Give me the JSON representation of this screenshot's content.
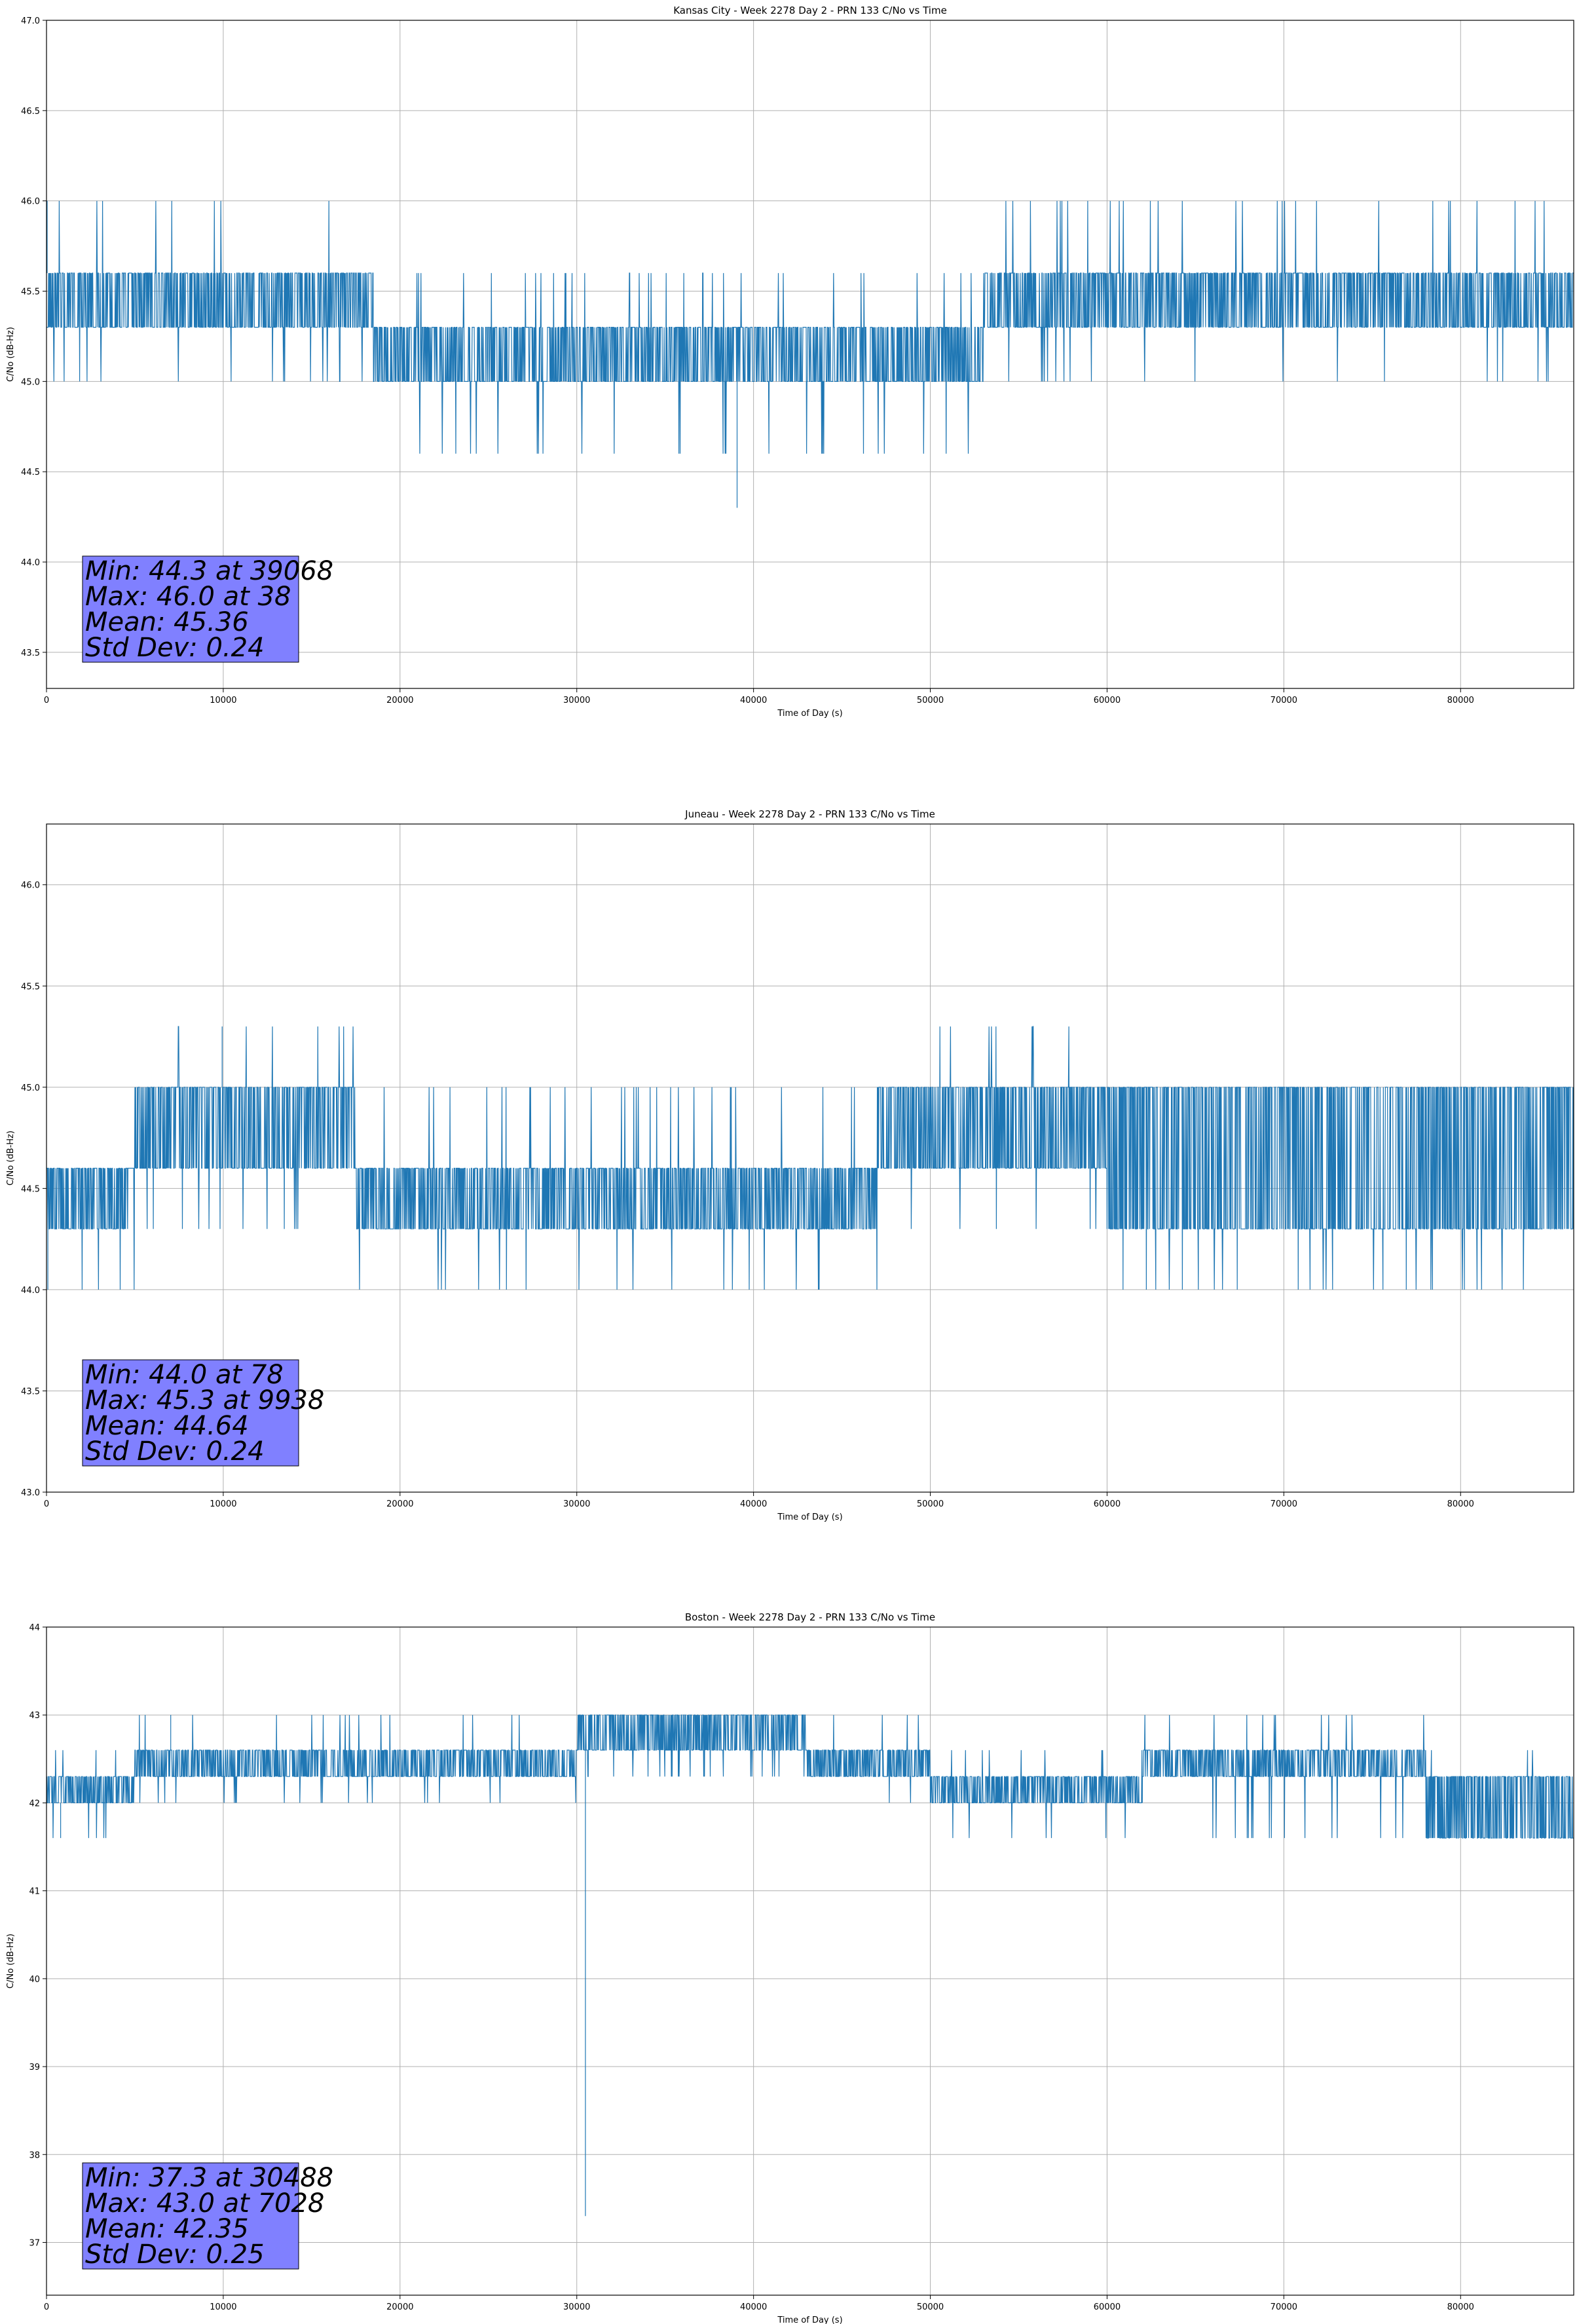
{
  "chart_data": [
    {
      "type": "line",
      "title": "Kansas City - Week 2278 Day 2 - PRN 133 C/No vs Time",
      "xlabel": "Time of Day (s)",
      "ylabel": "C/No (dB-Hz)",
      "xlim": [
        0,
        86400
      ],
      "ylim": [
        43.3,
        47.0
      ],
      "xticks": [
        0,
        10000,
        20000,
        30000,
        40000,
        50000,
        60000,
        70000,
        80000
      ],
      "xtick_labels": [
        "0",
        "10000",
        "20000",
        "30000",
        "40000",
        "50000",
        "60000",
        "70000",
        "80000"
      ],
      "yticks": [
        43.5,
        44.0,
        44.5,
        45.0,
        45.5,
        46.0,
        46.5,
        47.0
      ],
      "ytick_labels": [
        "43.5",
        "44.0",
        "44.5",
        "45.0",
        "45.5",
        "46.0",
        "46.5",
        "47.0"
      ],
      "grid": true,
      "color": "#1f77b4",
      "segments": [
        {
          "x": [
            0,
            18500
          ],
          "band": [
            45.3,
            45.6
          ],
          "spikes": [
            46.0,
            45.0
          ],
          "density": 0.6
        },
        {
          "x": [
            18500,
            53000
          ],
          "band": [
            45.0,
            45.3
          ],
          "spikes": [
            45.6,
            44.6
          ],
          "density": 0.4
        },
        {
          "x": [
            53000,
            86400
          ],
          "band": [
            45.3,
            45.6
          ],
          "spikes": [
            46.0,
            45.0
          ],
          "density": 0.35
        }
      ],
      "events": [
        {
          "x": 38,
          "y": 46.0
        },
        {
          "x": 39068,
          "y": 44.3
        }
      ],
      "stats": {
        "min": "Min: 44.3 at 39068",
        "max": "Max: 46.0 at 38",
        "mean": "Mean: 45.36",
        "std": "Std Dev: 0.24"
      }
    },
    {
      "type": "line",
      "title": "Juneau - Week 2278 Day 2 - PRN 133 C/No vs Time",
      "xlabel": "Time of Day (s)",
      "ylabel": "C/No (dB-Hz)",
      "xlim": [
        0,
        86400
      ],
      "ylim": [
        43.0,
        46.3
      ],
      "xticks": [
        0,
        10000,
        20000,
        30000,
        40000,
        50000,
        60000,
        70000,
        80000
      ],
      "xtick_labels": [
        "0",
        "10000",
        "20000",
        "30000",
        "40000",
        "50000",
        "60000",
        "70000",
        "80000"
      ],
      "yticks": [
        43.0,
        43.5,
        44.0,
        44.5,
        45.0,
        45.5,
        46.0
      ],
      "ytick_labels": [
        "43.0",
        "43.5",
        "44.0",
        "44.5",
        "45.0",
        "45.5",
        "46.0"
      ],
      "grid": true,
      "color": "#1f77b4",
      "segments": [
        {
          "x": [
            0,
            5000
          ],
          "band": [
            44.3,
            44.6
          ],
          "spikes": [
            44.0,
            44.6
          ],
          "density": 0.5
        },
        {
          "x": [
            5000,
            17500
          ],
          "band": [
            44.6,
            45.0
          ],
          "spikes": [
            45.3,
            44.3
          ],
          "density": 0.45
        },
        {
          "x": [
            17500,
            47000
          ],
          "band": [
            44.3,
            44.6
          ],
          "spikes": [
            45.0,
            44.0
          ],
          "density": 0.35
        },
        {
          "x": [
            47000,
            60000
          ],
          "band": [
            44.6,
            45.0
          ],
          "spikes": [
            45.3,
            44.3
          ],
          "density": 0.45
        },
        {
          "x": [
            60000,
            86400
          ],
          "band": [
            44.3,
            45.0
          ],
          "spikes": [
            44.0,
            45.0
          ],
          "density": 0.5
        }
      ],
      "events": [
        {
          "x": 78,
          "y": 44.0
        },
        {
          "x": 9938,
          "y": 45.3
        }
      ],
      "stats": {
        "min": "Min: 44.0 at 78",
        "max": "Max: 45.3 at 9938",
        "mean": "Mean: 44.64",
        "std": "Std Dev: 0.24"
      }
    },
    {
      "type": "line",
      "title": "Boston - Week 2278 Day 2 - PRN 133 C/No vs Time",
      "xlabel": "Time of Day (s)",
      "ylabel": "C/No (dB-Hz)",
      "xlim": [
        0,
        86400
      ],
      "ylim": [
        36.4,
        44.0
      ],
      "xticks": [
        0,
        10000,
        20000,
        30000,
        40000,
        50000,
        60000,
        70000,
        80000
      ],
      "xtick_labels": [
        "0",
        "10000",
        "20000",
        "30000",
        "40000",
        "50000",
        "60000",
        "70000",
        "80000"
      ],
      "yticks": [
        37,
        38,
        39,
        40,
        41,
        42,
        43,
        44
      ],
      "ytick_labels": [
        "37",
        "38",
        "39",
        "40",
        "41",
        "42",
        "43",
        "44"
      ],
      "grid": true,
      "color": "#1f77b4",
      "segments": [
        {
          "x": [
            0,
            5000
          ],
          "band": [
            42.0,
            42.3
          ],
          "spikes": [
            42.6,
            41.6
          ],
          "density": 0.4
        },
        {
          "x": [
            5000,
            30000
          ],
          "band": [
            42.3,
            42.6
          ],
          "spikes": [
            43.0,
            42.0
          ],
          "density": 0.4
        },
        {
          "x": [
            30000,
            43000
          ],
          "band": [
            42.6,
            43.0
          ],
          "spikes": [
            42.3,
            42.3
          ],
          "density": 0.5
        },
        {
          "x": [
            43000,
            50000
          ],
          "band": [
            42.3,
            42.6
          ],
          "spikes": [
            43.0,
            42.0
          ],
          "density": 0.35
        },
        {
          "x": [
            50000,
            62000
          ],
          "band": [
            42.0,
            42.3
          ],
          "spikes": [
            42.6,
            41.6
          ],
          "density": 0.35
        },
        {
          "x": [
            62000,
            78000
          ],
          "band": [
            42.3,
            42.6
          ],
          "spikes": [
            43.0,
            41.6
          ],
          "density": 0.45
        },
        {
          "x": [
            78000,
            86400
          ],
          "band": [
            41.6,
            42.3
          ],
          "spikes": [
            42.6,
            41.6
          ],
          "density": 0.4
        }
      ],
      "events": [
        {
          "x": 800,
          "y": 41.6
        },
        {
          "x": 7028,
          "y": 43.0
        },
        {
          "x": 30488,
          "y": 37.3
        }
      ],
      "stats": {
        "min": "Min: 37.3 at 30488",
        "max": "Max: 43.0 at 7028",
        "mean": "Mean: 42.35",
        "std": "Std Dev: 0.25"
      }
    }
  ]
}
